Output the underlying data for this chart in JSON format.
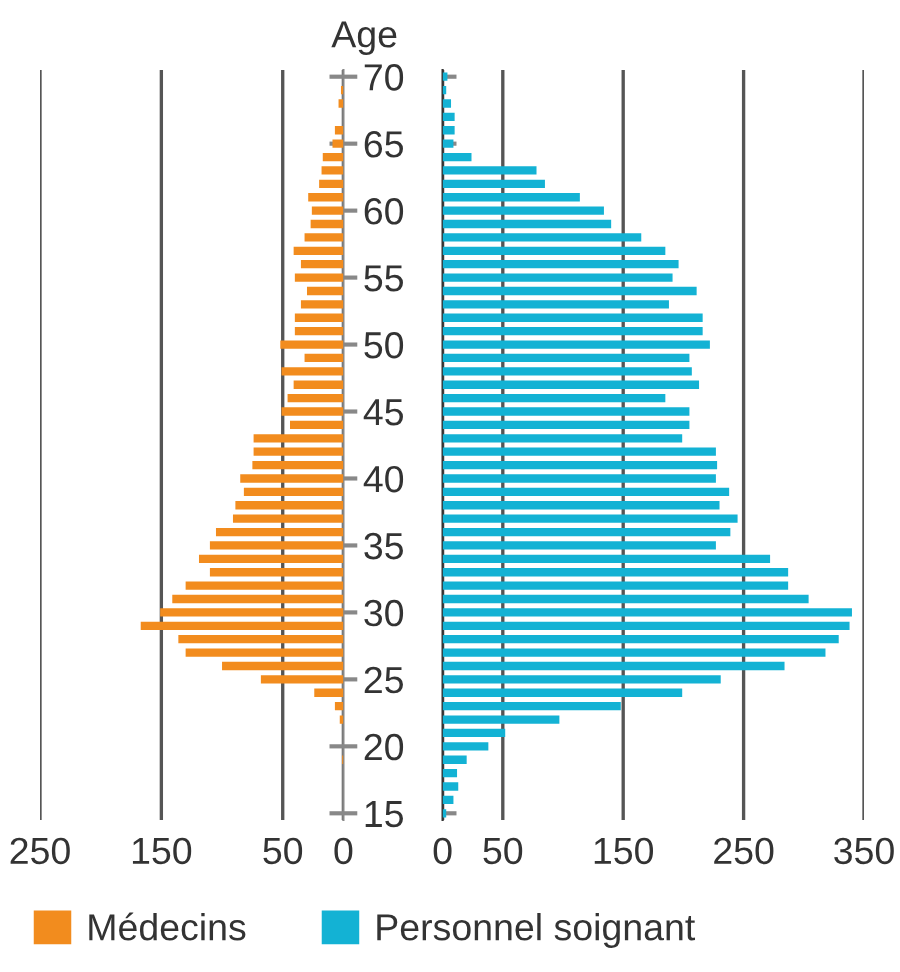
{
  "chart_data": [
    {
      "type": "bar",
      "orientation": "horizontal",
      "ylabel": "Age",
      "categories": [
        "70",
        null,
        null,
        null,
        null,
        "65",
        null,
        null,
        null,
        null,
        "60",
        null,
        null,
        null,
        null,
        "55",
        null,
        null,
        null,
        null,
        "50",
        null,
        null,
        null,
        null,
        "45",
        null,
        null,
        null,
        null,
        "40",
        null,
        null,
        null,
        null,
        "35",
        null,
        null,
        null,
        null,
        "30",
        null,
        null,
        null,
        null,
        "25",
        null,
        null,
        null,
        null,
        "20",
        null,
        null,
        null,
        null,
        "15"
      ],
      "series": [
        {
          "name": "Médecins",
          "color": "#f28c1e",
          "values": [
            0,
            2,
            4,
            0,
            7,
            9,
            17,
            18,
            20,
            29,
            26,
            27,
            32,
            41,
            35,
            40,
            30,
            35,
            40,
            40,
            52,
            32,
            51,
            41,
            46,
            51,
            44,
            74,
            74,
            75,
            85,
            82,
            89,
            91,
            105,
            110,
            119,
            110,
            130,
            141,
            151,
            167,
            136,
            130,
            100,
            68,
            24,
            7,
            3,
            0,
            0,
            1,
            0,
            0,
            0,
            0
          ]
        }
      ],
      "xlim": [
        250,
        0
      ],
      "xticks": [
        250,
        150,
        50,
        0
      ],
      "grid": "x",
      "legend": "bottom"
    },
    {
      "type": "bar",
      "orientation": "horizontal",
      "categories": [
        "70",
        null,
        null,
        null,
        null,
        "65",
        null,
        null,
        null,
        null,
        "60",
        null,
        null,
        null,
        null,
        "55",
        null,
        null,
        null,
        null,
        "50",
        null,
        null,
        null,
        null,
        "45",
        null,
        null,
        null,
        null,
        "40",
        null,
        null,
        null,
        null,
        "35",
        null,
        null,
        null,
        null,
        "30",
        null,
        null,
        null,
        null,
        "25",
        null,
        null,
        null,
        null,
        "20",
        null,
        null,
        null,
        null,
        "15"
      ],
      "series": [
        {
          "name": "Personnel soignant",
          "color": "#13b2d4",
          "values": [
            4,
            3,
            7,
            10,
            10,
            9,
            24,
            78,
            85,
            114,
            134,
            140,
            165,
            185,
            196,
            191,
            211,
            188,
            216,
            216,
            222,
            205,
            207,
            213,
            185,
            205,
            205,
            199,
            227,
            228,
            227,
            238,
            230,
            245,
            239,
            227,
            272,
            287,
            287,
            304,
            340,
            338,
            329,
            318,
            284,
            231,
            199,
            148,
            97,
            52,
            38,
            20,
            12,
            13,
            9,
            3
          ]
        }
      ],
      "xlim": [
        0,
        350
      ],
      "xticks": [
        0,
        50,
        150,
        250,
        350
      ],
      "grid": "x",
      "legend": "bottom",
      "tick_labels": "x"
    }
  ]
}
